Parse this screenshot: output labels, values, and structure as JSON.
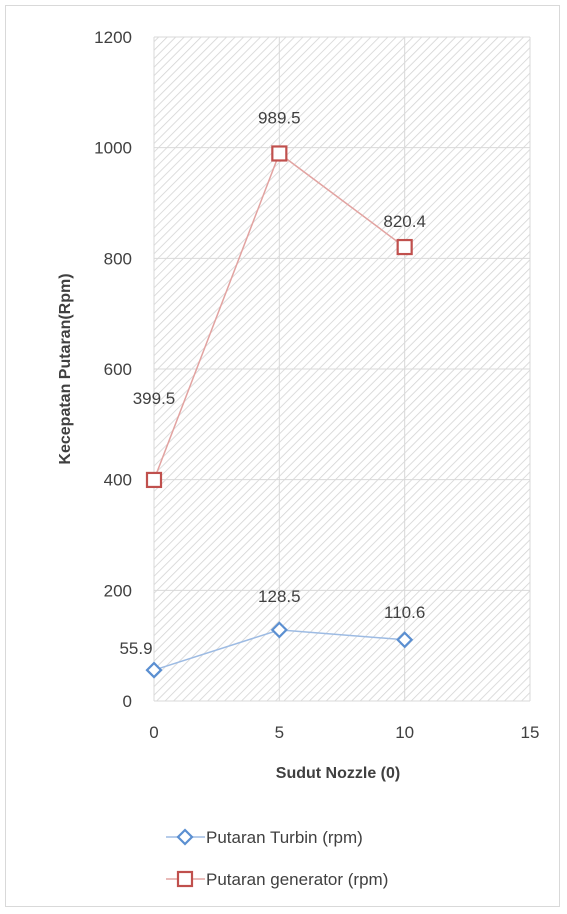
{
  "chart_data": {
    "type": "line",
    "x": [
      0,
      5,
      10
    ],
    "series": [
      {
        "name": "Putaran Turbin (rpm)",
        "values": [
          55.9,
          128.5,
          110.6
        ],
        "labels": [
          "55.9",
          "128.5",
          "110.6"
        ],
        "color": "#5b8fd1",
        "line_color": "#9dbbe3",
        "marker": "diamond"
      },
      {
        "name": "Putaran generator (rpm)",
        "values": [
          399.5,
          989.5,
          820.4
        ],
        "labels": [
          "399.5",
          "989.5",
          "820.4"
        ],
        "color": "#c0504d",
        "line_color": "#e2a3a1",
        "marker": "square"
      }
    ],
    "xlabel": "Sudut Nozzle (0)",
    "ylabel": "Kecepatan Putaran(Rpm)",
    "xlim": [
      0,
      15
    ],
    "ylim": [
      0,
      1200
    ],
    "xticks": [
      "0",
      "5",
      "10",
      "15"
    ],
    "yticks": [
      "0",
      "200",
      "400",
      "600",
      "800",
      "1000",
      "1200"
    ],
    "grid": true,
    "plot_background": "diagonal-hatch",
    "legend_position": "bottom"
  }
}
